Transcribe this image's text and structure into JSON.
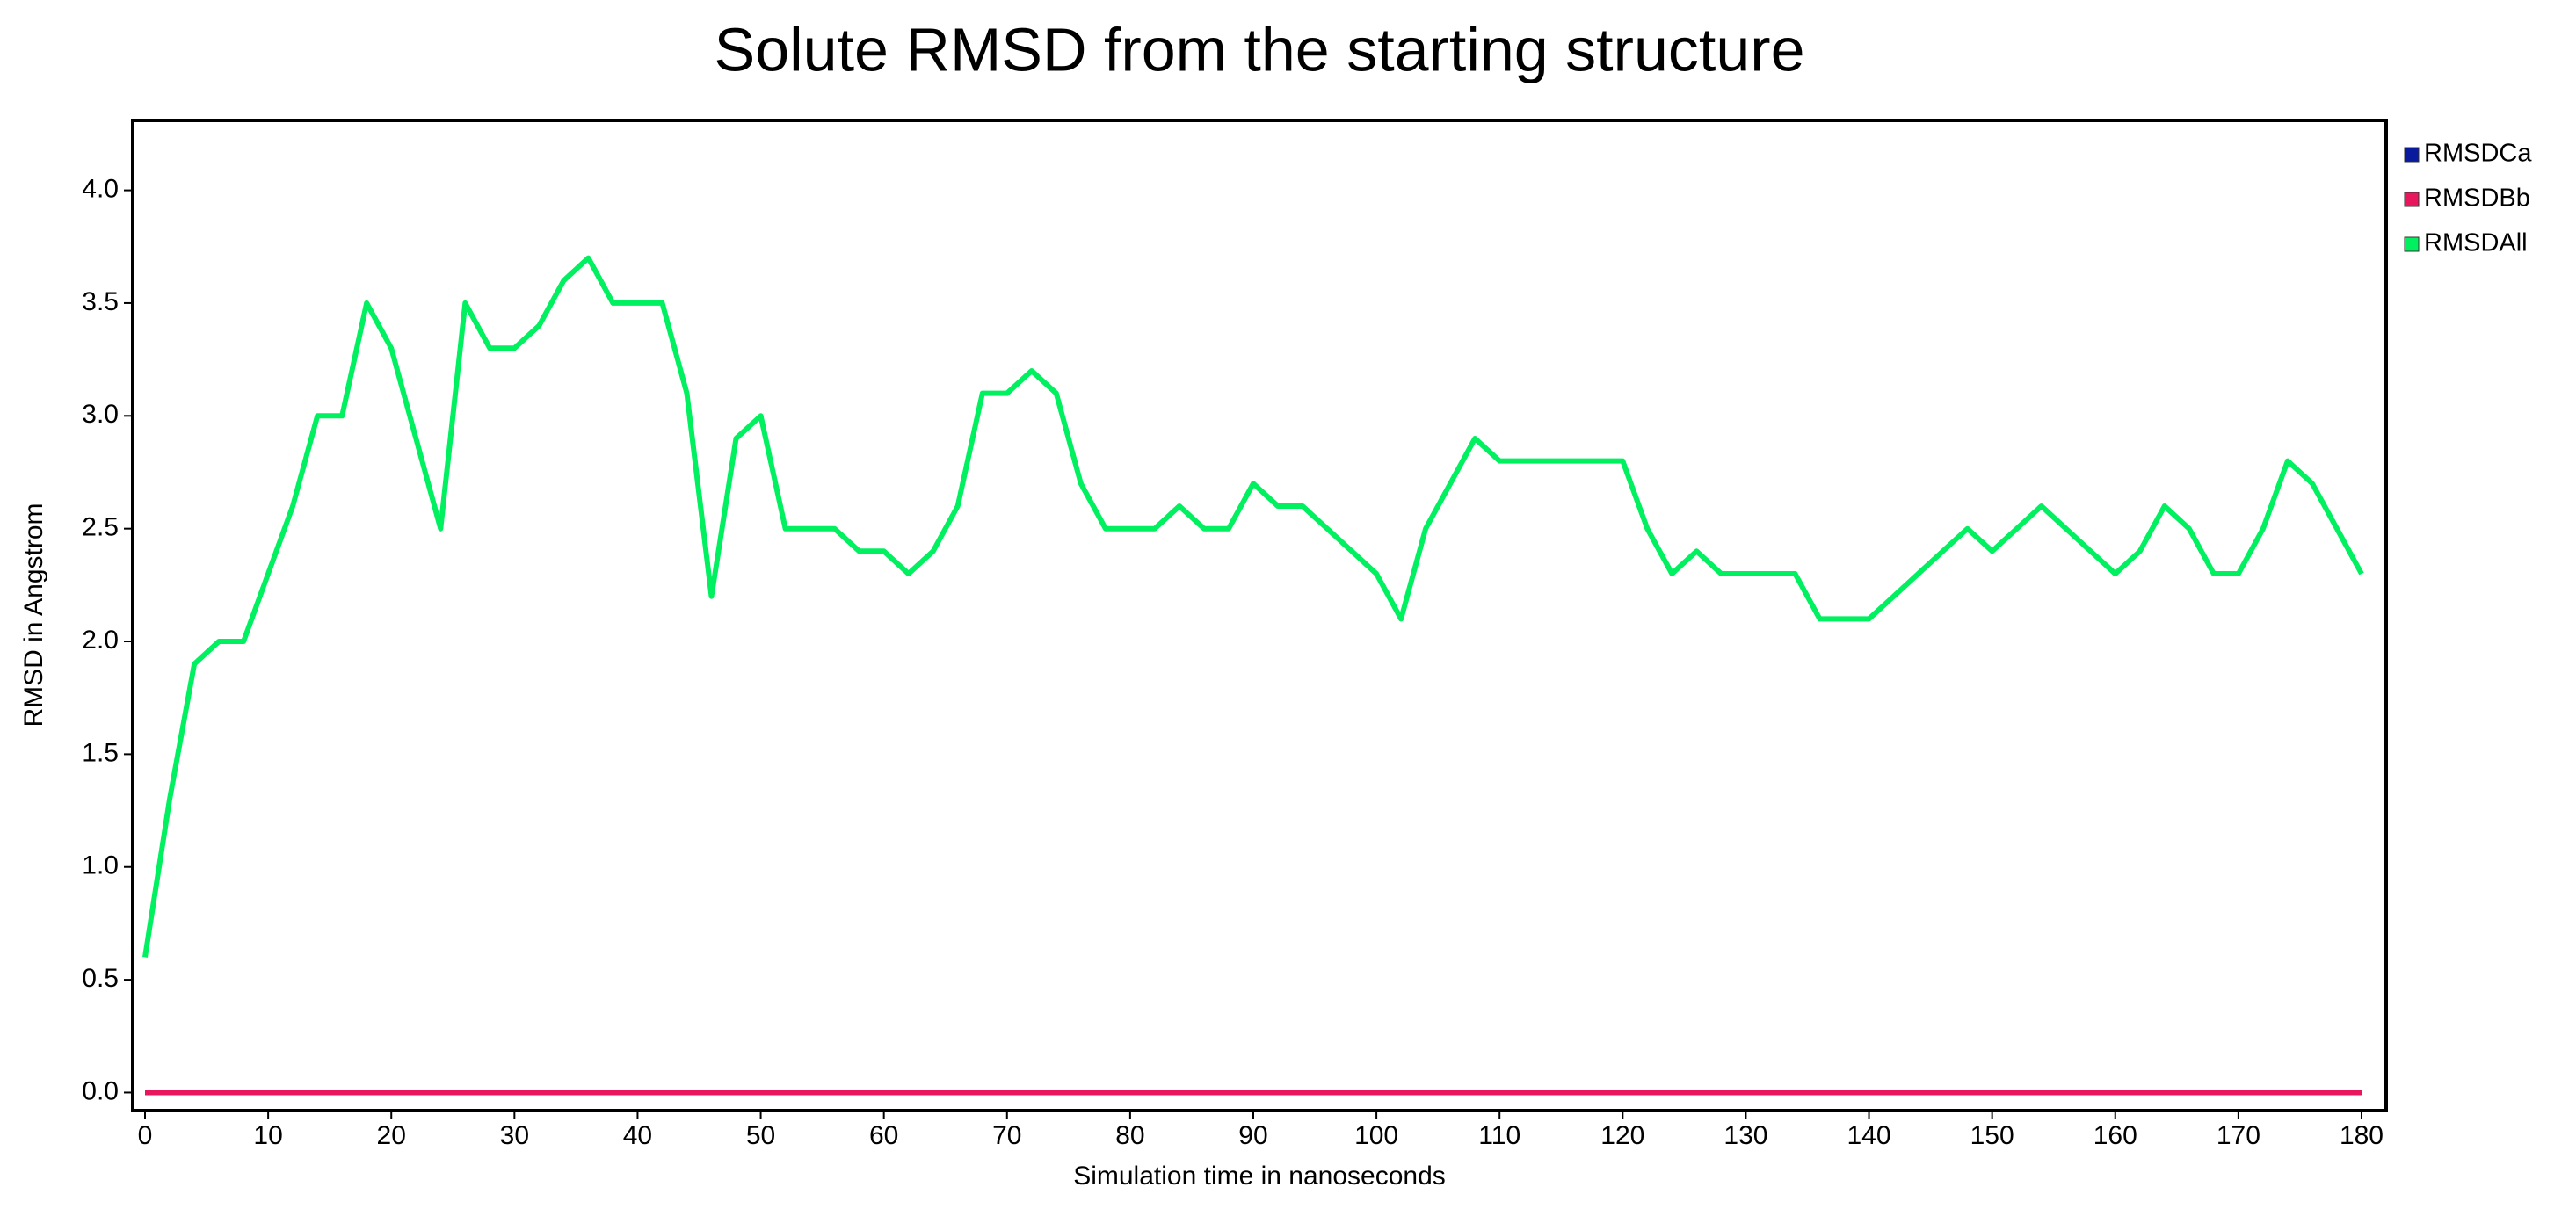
{
  "chart_data": {
    "type": "line",
    "title": "Solute RMSD from the starting structure",
    "x_label": "Simulation time in nanoseconds",
    "y_label": "RMSD in Angstrom",
    "x": [
      0,
      2,
      4,
      6,
      8,
      10,
      12,
      14,
      16,
      18,
      20,
      22,
      24,
      26,
      28,
      30,
      32,
      34,
      36,
      38,
      40,
      42,
      44,
      46,
      48,
      50,
      52,
      54,
      56,
      58,
      60,
      62,
      64,
      66,
      68,
      70,
      72,
      74,
      76,
      78,
      80,
      82,
      84,
      86,
      88,
      90,
      92,
      94,
      96,
      98,
      100,
      102,
      104,
      106,
      108,
      110,
      112,
      114,
      116,
      118,
      120,
      122,
      124,
      126,
      128,
      130,
      132,
      134,
      136,
      138,
      140,
      142,
      144,
      146,
      148,
      150,
      152,
      154,
      156,
      158,
      160,
      162,
      164,
      166,
      168,
      170,
      172,
      174,
      176,
      178,
      180
    ],
    "series": [
      {
        "name": "RMSDCa",
        "color": "#0a1a9c",
        "values": [
          0,
          0,
          0,
          0,
          0,
          0,
          0,
          0,
          0,
          0,
          0,
          0,
          0,
          0,
          0,
          0,
          0,
          0,
          0,
          0,
          0,
          0,
          0,
          0,
          0,
          0,
          0,
          0,
          0,
          0,
          0,
          0,
          0,
          0,
          0,
          0,
          0,
          0,
          0,
          0,
          0,
          0,
          0,
          0,
          0,
          0,
          0,
          0,
          0,
          0,
          0,
          0,
          0,
          0,
          0,
          0,
          0,
          0,
          0,
          0,
          0,
          0,
          0,
          0,
          0,
          0,
          0,
          0,
          0,
          0,
          0,
          0,
          0,
          0,
          0,
          0,
          0,
          0,
          0,
          0,
          0,
          0,
          0,
          0,
          0,
          0,
          0,
          0,
          0,
          0,
          0
        ]
      },
      {
        "name": "RMSDBb",
        "color": "#e8175d",
        "values": [
          0,
          0,
          0,
          0,
          0,
          0,
          0,
          0,
          0,
          0,
          0,
          0,
          0,
          0,
          0,
          0,
          0,
          0,
          0,
          0,
          0,
          0,
          0,
          0,
          0,
          0,
          0,
          0,
          0,
          0,
          0,
          0,
          0,
          0,
          0,
          0,
          0,
          0,
          0,
          0,
          0,
          0,
          0,
          0,
          0,
          0,
          0,
          0,
          0,
          0,
          0,
          0,
          0,
          0,
          0,
          0,
          0,
          0,
          0,
          0,
          0,
          0,
          0,
          0,
          0,
          0,
          0,
          0,
          0,
          0,
          0,
          0,
          0,
          0,
          0,
          0,
          0,
          0,
          0,
          0,
          0,
          0,
          0,
          0,
          0,
          0,
          0,
          0,
          0,
          0,
          0
        ]
      },
      {
        "name": "RMSDAll",
        "color": "#00f060",
        "values": [
          0.6,
          1.3,
          1.9,
          2.0,
          2.0,
          2.3,
          2.6,
          3.0,
          3.0,
          3.5,
          3.3,
          2.9,
          2.5,
          3.5,
          3.3,
          3.3,
          3.4,
          3.6,
          3.7,
          3.5,
          3.5,
          3.5,
          3.1,
          2.2,
          2.9,
          3.0,
          2.5,
          2.5,
          2.5,
          2.4,
          2.4,
          2.3,
          2.4,
          2.6,
          3.1,
          3.1,
          3.2,
          3.1,
          2.7,
          2.5,
          2.5,
          2.5,
          2.6,
          2.5,
          2.5,
          2.7,
          2.6,
          2.6,
          2.5,
          2.4,
          2.3,
          2.1,
          2.5,
          2.7,
          2.9,
          2.8,
          2.8,
          2.8,
          2.8,
          2.8,
          2.8,
          2.5,
          2.3,
          2.4,
          2.3,
          2.3,
          2.3,
          2.3,
          2.1,
          2.1,
          2.1,
          2.2,
          2.3,
          2.4,
          2.5,
          2.4,
          2.5,
          2.6,
          2.5,
          2.4,
          2.3,
          2.4,
          2.6,
          2.5,
          2.3,
          2.3,
          2.5,
          2.8,
          2.7,
          2.5,
          2.3
        ]
      }
    ],
    "xlim": [
      -1,
      182
    ],
    "xticks": [
      0,
      10,
      20,
      30,
      40,
      50,
      60,
      70,
      80,
      90,
      100,
      110,
      120,
      130,
      140,
      150,
      160,
      170,
      180
    ],
    "ylim": [
      -0.08,
      4.31
    ],
    "yticks": [
      {
        "value": 0,
        "label": "0.0"
      },
      0.5,
      {
        "value": 1,
        "label": "1.0"
      },
      1.5,
      {
        "value": 2,
        "label": "2.0"
      },
      2.5,
      {
        "value": 3,
        "label": "3.0"
      },
      3.5,
      {
        "value": 4,
        "label": "4.0"
      }
    ],
    "grid": false,
    "legend": "right"
  }
}
